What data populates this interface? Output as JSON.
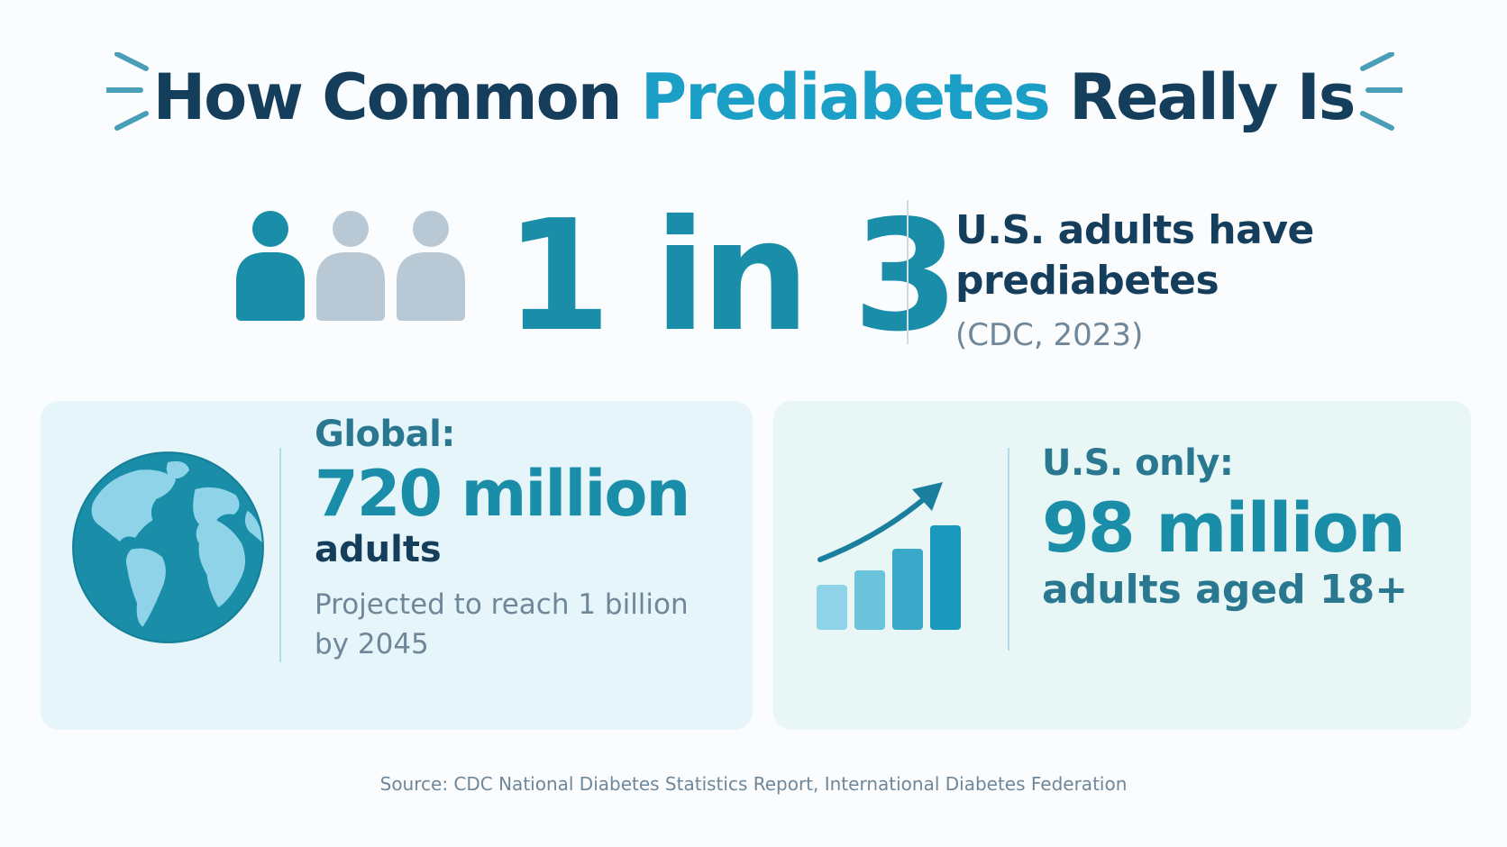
{
  "title": {
    "before": "How Common ",
    "highlight": "Prediabetes",
    "after": " Really Is"
  },
  "headline_stat": {
    "ratio": "1 in 3",
    "line1": "U.S. adults have",
    "line2": "prediabetes",
    "citation": "(CDC, 2023)"
  },
  "global_card": {
    "label": "Global:",
    "value": "720 million",
    "unit": "adults",
    "note_line1": "Projected to reach 1 billion",
    "note_line2": "by 2045"
  },
  "us_card": {
    "label": "U.S. only:",
    "value": "98 million",
    "unit": "adults aged 18+"
  },
  "source": "Source: CDC National Diabetes Statistics Report, International Diabetes Federation",
  "icons": [
    "burst-lines-icon",
    "person-icon",
    "globe-icon",
    "growth-chart-icon",
    "trend-arrow-icon"
  ],
  "colors": {
    "navy": "#153e5c",
    "teal": "#1a8ea8",
    "accent": "#1b9fc6",
    "muted_person": "#b8c8d4",
    "muted_text": "#6f8799",
    "card_global": "#e6f5fa",
    "card_us": "#e9f6f6"
  }
}
